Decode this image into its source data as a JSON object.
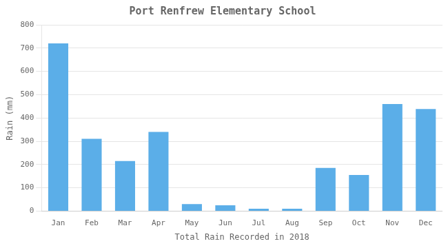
{
  "chart_data": {
    "type": "bar",
    "title": "Port Renfrew Elementary School",
    "xlabel": "Total Rain Recorded in 2018",
    "ylabel": "Rain (mm)",
    "categories": [
      "Jan",
      "Feb",
      "Mar",
      "Apr",
      "May",
      "Jun",
      "Jul",
      "Aug",
      "Sep",
      "Oct",
      "Nov",
      "Dec"
    ],
    "values": [
      720,
      310,
      215,
      340,
      30,
      25,
      10,
      10,
      185,
      155,
      460,
      438
    ],
    "color": "#5baee8",
    "ylim": [
      0,
      800
    ],
    "yticks": [
      0,
      100,
      200,
      300,
      400,
      500,
      600,
      700,
      800
    ],
    "grid": true
  }
}
